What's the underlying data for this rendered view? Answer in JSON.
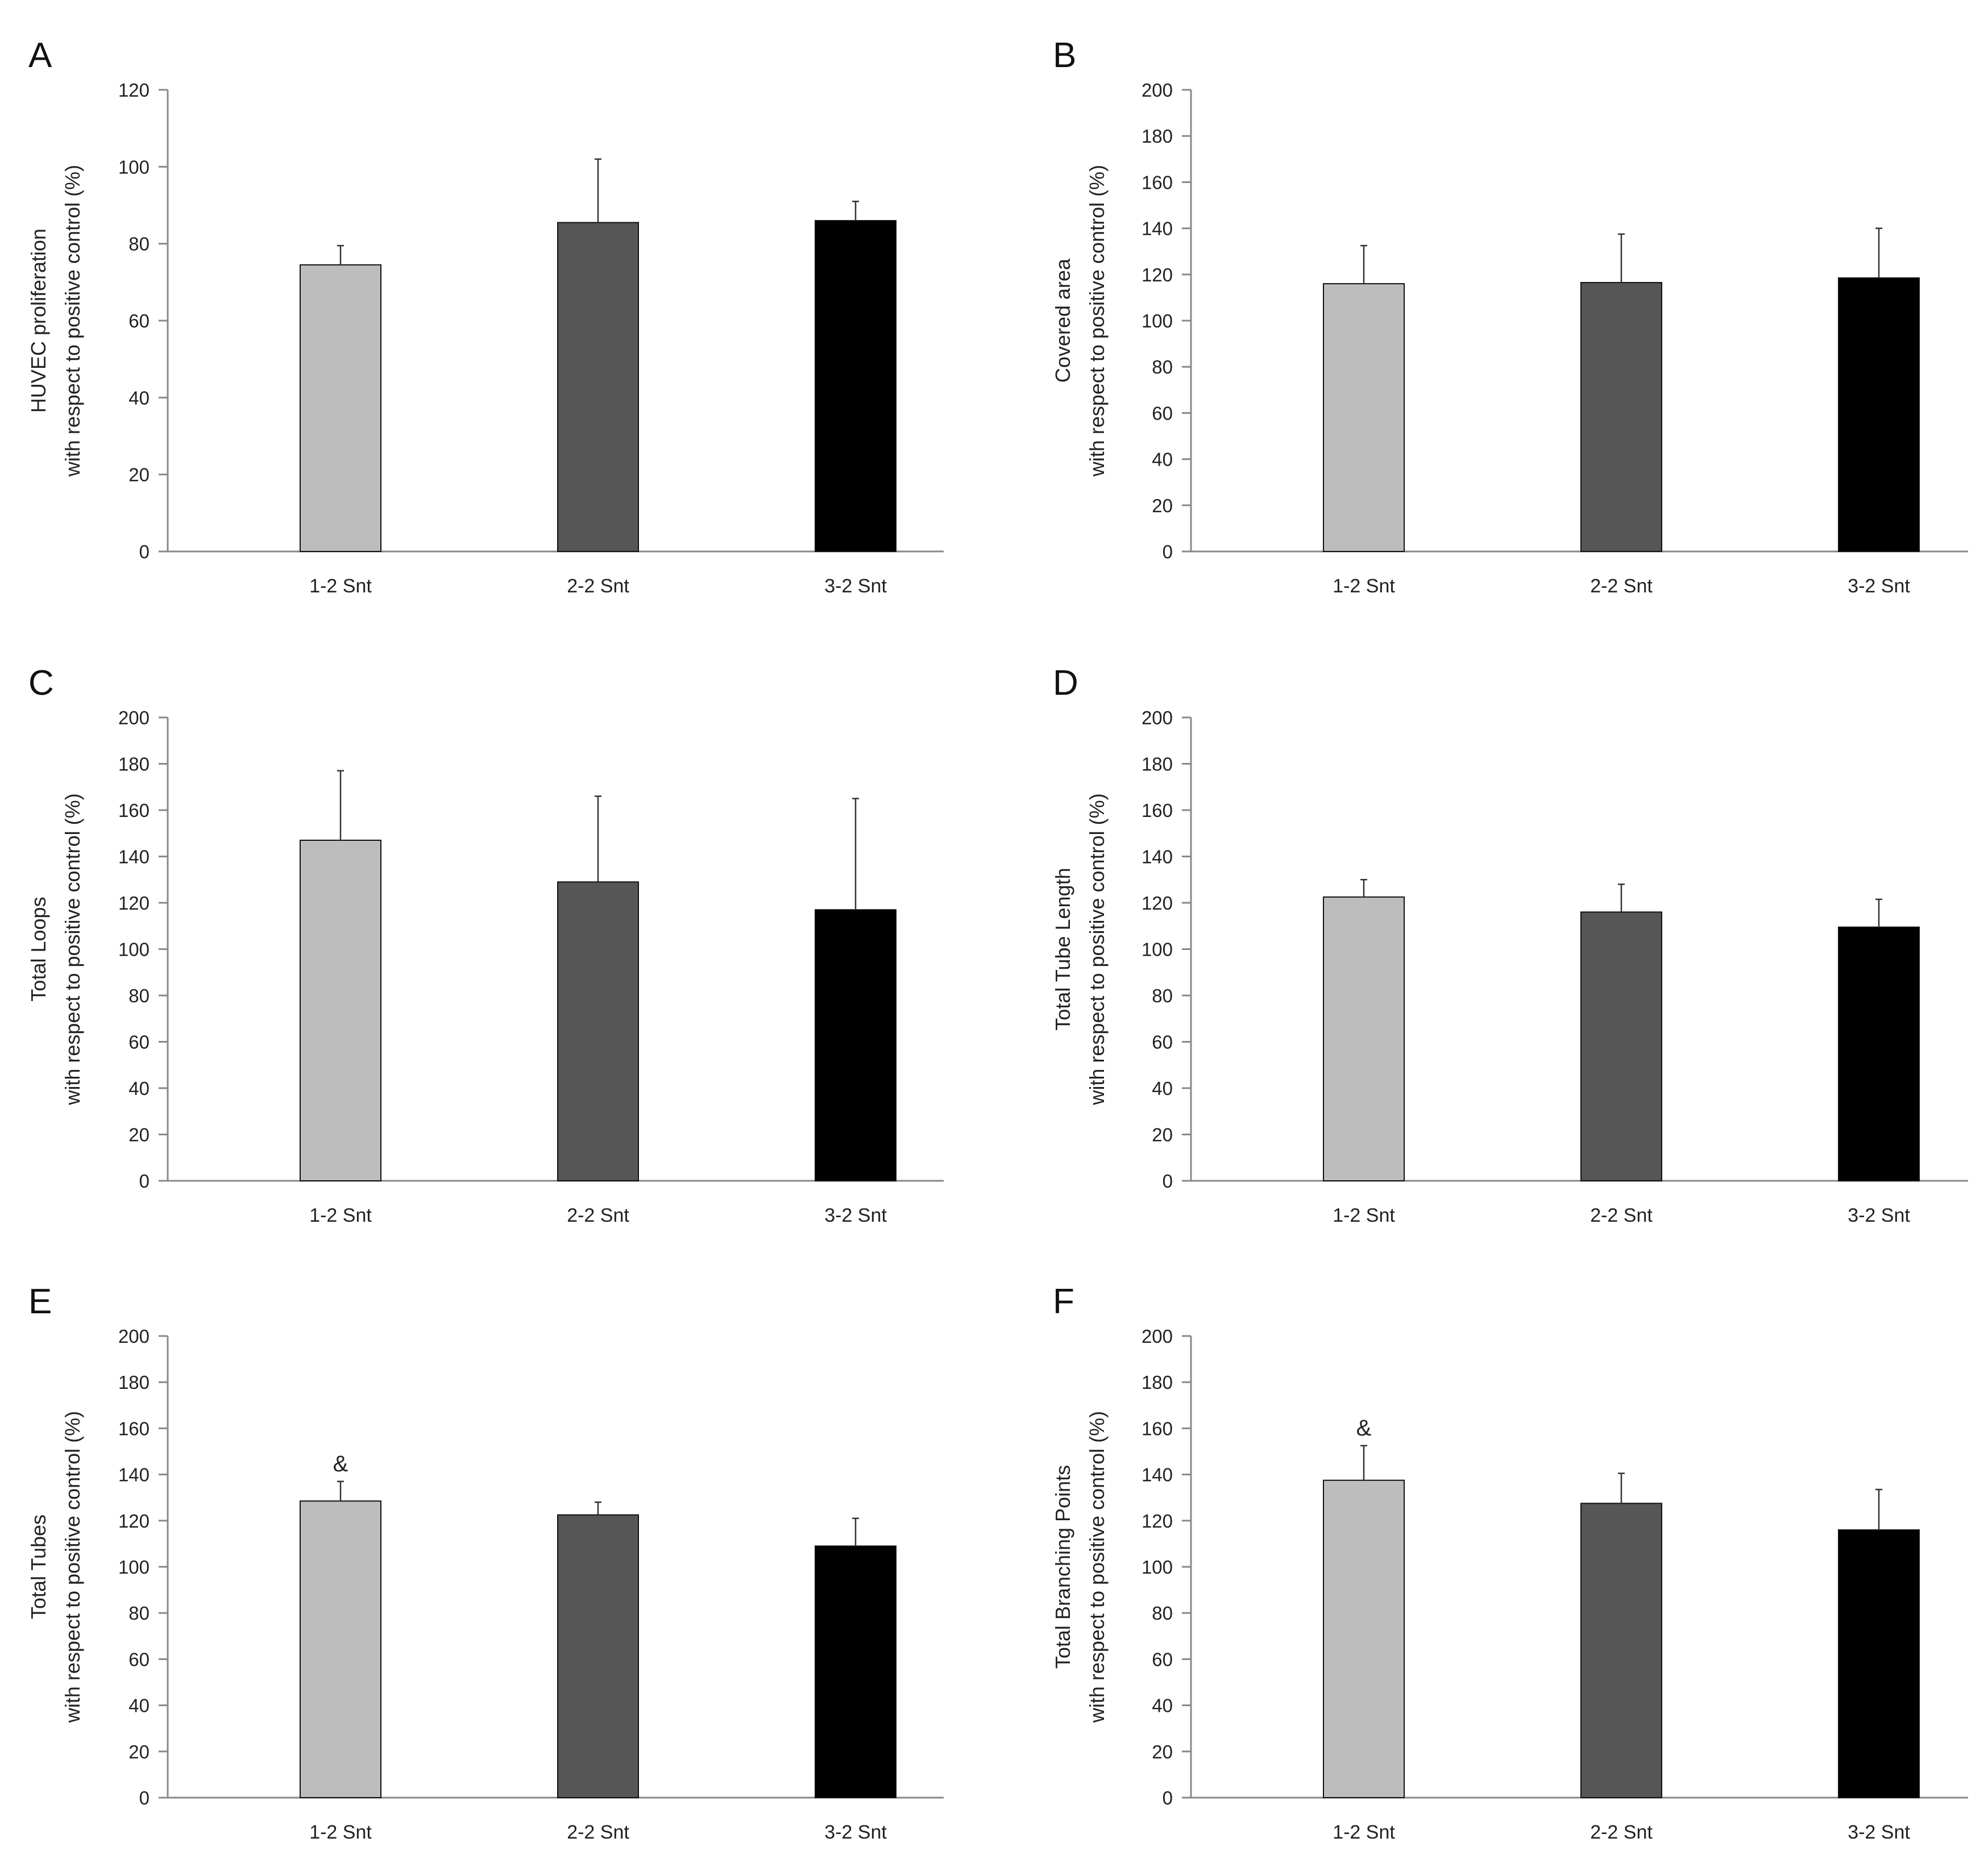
{
  "colors": {
    "bar_light": "#bdbdbd",
    "bar_dark": "#565656",
    "bar_black": "#000000"
  },
  "chart_data": [
    {
      "panel": "A",
      "type": "bar",
      "categories": [
        "1-2 Snt",
        "2-2 Snt",
        "3-2 Snt"
      ],
      "values": [
        74.5,
        85.5,
        86
      ],
      "errors": [
        5,
        16.5,
        5
      ],
      "ylabel": [
        "HUVEC proliferation",
        "with respect to positive control (%)"
      ],
      "ylim": [
        0,
        120
      ],
      "yticks": [
        0,
        20,
        40,
        60,
        80,
        100,
        120
      ],
      "annotations": []
    },
    {
      "panel": "B",
      "type": "bar",
      "categories": [
        "1-2 Snt",
        "2-2 Snt",
        "3-2 Snt"
      ],
      "values": [
        116,
        116.5,
        118.5
      ],
      "errors": [
        16.5,
        21,
        21.5
      ],
      "ylabel": [
        "Covered area",
        "with respect to positive control (%)"
      ],
      "ylim": [
        0,
        200
      ],
      "yticks": [
        0,
        20,
        40,
        60,
        80,
        100,
        120,
        140,
        160,
        180,
        200
      ],
      "annotations": []
    },
    {
      "panel": "C",
      "type": "bar",
      "categories": [
        "1-2 Snt",
        "2-2 Snt",
        "3-2 Snt"
      ],
      "values": [
        147,
        129,
        117
      ],
      "errors": [
        30,
        37,
        48
      ],
      "ylabel": [
        "Total Loops",
        "with respect to positive control (%)"
      ],
      "ylim": [
        0,
        200
      ],
      "yticks": [
        0,
        20,
        40,
        60,
        80,
        100,
        120,
        140,
        160,
        180,
        200
      ],
      "annotations": []
    },
    {
      "panel": "D",
      "type": "bar",
      "categories": [
        "1-2 Snt",
        "2-2 Snt",
        "3-2 Snt"
      ],
      "values": [
        122.5,
        116,
        109.5
      ],
      "errors": [
        7.5,
        12,
        12
      ],
      "ylabel": [
        "Total Tube Length",
        "with respect to positive control (%)"
      ],
      "ylim": [
        0,
        200
      ],
      "yticks": [
        0,
        20,
        40,
        60,
        80,
        100,
        120,
        140,
        160,
        180,
        200
      ],
      "annotations": []
    },
    {
      "panel": "E",
      "type": "bar",
      "categories": [
        "1-2 Snt",
        "2-2 Snt",
        "3-2 Snt"
      ],
      "values": [
        128.5,
        122.5,
        109
      ],
      "errors": [
        8.5,
        5.5,
        12
      ],
      "ylabel": [
        "Total Tubes",
        "with respect to positive control (%)"
      ],
      "ylim": [
        0,
        200
      ],
      "yticks": [
        0,
        20,
        40,
        60,
        80,
        100,
        120,
        140,
        160,
        180,
        200
      ],
      "annotations": [
        {
          "category_index": 0,
          "text": "&"
        }
      ]
    },
    {
      "panel": "F",
      "type": "bar",
      "categories": [
        "1-2 Snt",
        "2-2 Snt",
        "3-2 Snt"
      ],
      "values": [
        137.5,
        127.5,
        116
      ],
      "errors": [
        15,
        13,
        17.5
      ],
      "ylabel": [
        "Total Branching Points",
        "with respect to positive control (%)"
      ],
      "ylim": [
        0,
        200
      ],
      "yticks": [
        0,
        20,
        40,
        60,
        80,
        100,
        120,
        140,
        160,
        180,
        200
      ],
      "annotations": [
        {
          "category_index": 0,
          "text": "&"
        }
      ]
    }
  ]
}
